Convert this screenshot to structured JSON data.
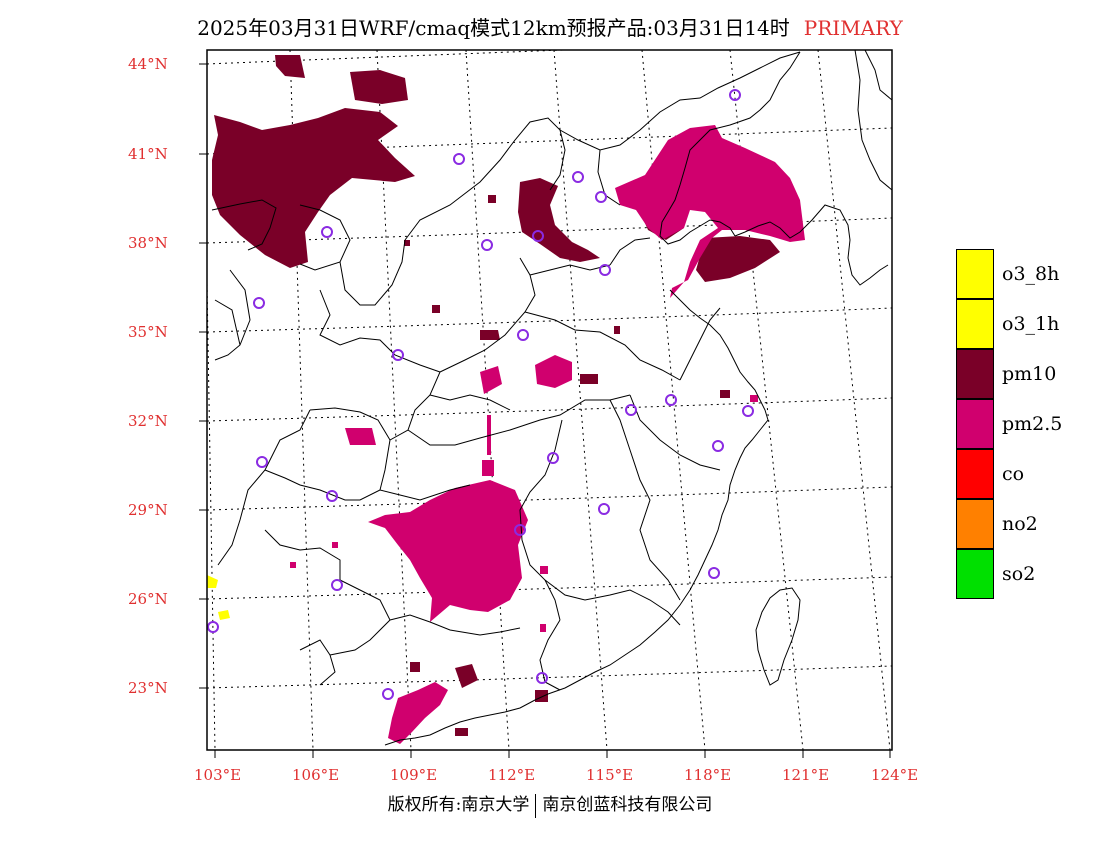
{
  "title": "2025年03月31日WRF/cmaq模式12km预报产品:03月31日14时",
  "title_tag": "PRIMARY",
  "lat_labels": [
    "44°N",
    "41°N",
    "38°N",
    "35°N",
    "32°N",
    "29°N",
    "26°N",
    "23°N"
  ],
  "lon_labels": [
    "103°E",
    "106°E",
    "109°E",
    "112°E",
    "115°E",
    "118°E",
    "121°E",
    "124°E"
  ],
  "legend": [
    {
      "label": "o3_8h",
      "color": "#ffff00"
    },
    {
      "label": "o3_1h",
      "color": "#ffff00"
    },
    {
      "label": "pm10",
      "color": "#7a0028"
    },
    {
      "label": "pm2.5",
      "color": "#d0006e"
    },
    {
      "label": "co",
      "color": "#ff0000"
    },
    {
      "label": "no2",
      "color": "#ff8000"
    },
    {
      "label": "so2",
      "color": "#00e000"
    }
  ],
  "footer_left": "版权所有:南京大学",
  "footer_right": "南京创蓝科技有限公司"
}
